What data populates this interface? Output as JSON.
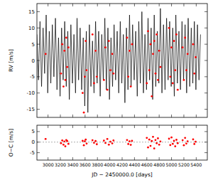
{
  "chart_data": [
    {
      "type": "line",
      "y_label": "RV [m/s]",
      "xlim": [
        2820,
        5580
      ],
      "ylim": [
        -17.5,
        17.5
      ],
      "xticks": [
        3000,
        3200,
        3400,
        3600,
        3800,
        4000,
        4200,
        4400,
        4600,
        4800,
        5000,
        5200,
        5400
      ],
      "yticks": [
        -15,
        -10,
        -5,
        0,
        5,
        10,
        15
      ],
      "tick_labels": "y",
      "series": [
        {
          "type": "line",
          "color": "#000000",
          "line_style": "solid",
          "x": [
            2820,
            2845,
            2870,
            2895,
            2920,
            2945,
            2970,
            2995,
            3020,
            3045,
            3070,
            3095,
            3120,
            3145,
            3170,
            3195,
            3220,
            3245,
            3270,
            3295,
            3320,
            3345,
            3370,
            3395,
            3420,
            3445,
            3470,
            3495,
            3520,
            3545,
            3570,
            3595,
            3620,
            3645,
            3670,
            3695,
            3720,
            3745,
            3770,
            3795,
            3820,
            3845,
            3870,
            3895,
            3920,
            3945,
            3970,
            3995,
            4020,
            4045,
            4070,
            4095,
            4120,
            4145,
            4170,
            4195,
            4220,
            4245,
            4270,
            4295,
            4320,
            4345,
            4370,
            4395,
            4420,
            4445,
            4470,
            4495,
            4520,
            4545,
            4570,
            4595,
            4620,
            4645,
            4670,
            4695,
            4720,
            4745,
            4770,
            4795,
            4820,
            4845,
            4870,
            4895,
            4920,
            4945,
            4970,
            4995,
            5020,
            5045,
            5070,
            5095,
            5120,
            5145,
            5170,
            5195,
            5220,
            5245,
            5270,
            5295,
            5320,
            5345,
            5370,
            5395,
            5420,
            5445,
            5470
          ],
          "values": [
            8,
            -6,
            12,
            -8,
            10,
            -4,
            14,
            -10,
            9,
            -7,
            11,
            -5,
            13,
            -9,
            7,
            -11,
            10,
            -6,
            12,
            -8,
            9,
            -12,
            11,
            -7,
            8,
            -10,
            13,
            -6,
            10,
            -9,
            7,
            -14,
            9,
            -16,
            11,
            -8,
            6,
            -10,
            12,
            -7,
            9,
            -11,
            8,
            -6,
            13,
            -9,
            10,
            -12,
            7,
            -8,
            11,
            -6,
            9,
            -10,
            12,
            -7,
            8,
            -13,
            10,
            -9,
            14,
            -8,
            11,
            -6,
            9,
            -11,
            12,
            -7,
            15,
            -10,
            8,
            -9,
            13,
            -6,
            10,
            -12,
            14,
            -8,
            9,
            -7,
            16,
            -10,
            11,
            -9,
            13,
            -6,
            12,
            -8,
            10,
            -11,
            14,
            -7,
            9,
            -9,
            12,
            -6,
            11,
            -10,
            13,
            -8,
            10,
            -7,
            12,
            -9,
            11,
            -6,
            8
          ]
        },
        {
          "type": "scatter",
          "color": "#ff0000",
          "marker": "circle",
          "x": [
            2960,
            3210,
            3230,
            3250,
            3265,
            3280,
            3295,
            3310,
            3330,
            3560,
            3580,
            3595,
            3610,
            3625,
            3720,
            3745,
            3770,
            3790,
            3905,
            3930,
            3960,
            3985,
            4010,
            4040,
            4060,
            4280,
            4300,
            4320,
            4340,
            4360,
            4600,
            4620,
            4640,
            4660,
            4680,
            4700,
            4720,
            4740,
            4760,
            4780,
            4800,
            4820,
            4960,
            4980,
            5000,
            5020,
            5040,
            5060,
            5080,
            5100,
            5180,
            5200,
            5220,
            5240,
            5260,
            5350,
            5370,
            5390
          ],
          "values": [
            2,
            -4,
            5,
            -8,
            3,
            -6,
            7,
            -2,
            4,
            -10,
            -16,
            -5,
            6,
            -3,
            8,
            -7,
            3,
            -5,
            -6,
            4,
            -9,
            6,
            -3,
            2,
            -4,
            7,
            -5,
            3,
            -8,
            5,
            -7,
            9,
            -3,
            5,
            -11,
            2,
            6,
            -4,
            8,
            -6,
            3,
            -2,
            10,
            -5,
            4,
            -7,
            6,
            -3,
            8,
            -9,
            4,
            -6,
            7,
            -3,
            2,
            5,
            -4,
            1
          ]
        }
      ]
    },
    {
      "type": "scatter",
      "y_label": "O−C [m/s]",
      "x_label": "JD − 2450000.0 [days]",
      "xlim": [
        2820,
        5580
      ],
      "ylim": [
        -8.5,
        8
      ],
      "xticks": [
        3000,
        3200,
        3400,
        3600,
        3800,
        4000,
        4200,
        4400,
        4600,
        4800,
        5000,
        5200,
        5400
      ],
      "yticks": [
        -5,
        0,
        5
      ],
      "tick_labels": true,
      "series": [
        {
          "type": "scatter",
          "color": "#ff0000",
          "marker": "circle",
          "x": [
            2960,
            3210,
            3230,
            3250,
            3265,
            3280,
            3295,
            3310,
            3330,
            3560,
            3580,
            3595,
            3610,
            3625,
            3720,
            3745,
            3770,
            3790,
            3905,
            3930,
            3960,
            3985,
            4010,
            4040,
            4060,
            4280,
            4300,
            4320,
            4340,
            4360,
            4600,
            4620,
            4640,
            4660,
            4680,
            4700,
            4720,
            4740,
            4760,
            4780,
            4800,
            4820,
            4960,
            4980,
            5000,
            5020,
            5040,
            5060,
            5080,
            5100,
            5180,
            5200,
            5220,
            5240,
            5260,
            5350,
            5370,
            5390
          ],
          "values": [
            1.5,
            -0.5,
            0.8,
            -1.2,
            0.3,
            -2,
            1,
            0.5,
            -0.8,
            0.6,
            -1.5,
            0.4,
            1.2,
            -0.7,
            0.9,
            -0.3,
            0.5,
            -1,
            0.7,
            -0.4,
            1.5,
            -1.2,
            0.2,
            -0.6,
            0.8,
            1,
            -0.9,
            0.4,
            -1.3,
            0.6,
            2,
            -2.5,
            1.2,
            -1.8,
            0.5,
            2.5,
            -3,
            1,
            -0.5,
            1.8,
            -1.2,
            0.3,
            1.6,
            -1.4,
            2.2,
            -0.8,
            0.6,
            -2,
            1.1,
            -0.5,
            0.9,
            -1.5,
            2,
            -0.7,
            0.4,
            1.3,
            -0.9,
            0.2
          ]
        },
        {
          "type": "line",
          "color": "#888888",
          "line_style": "dashed",
          "x": [
            2820,
            5580
          ],
          "values": [
            0,
            0
          ]
        }
      ]
    }
  ]
}
